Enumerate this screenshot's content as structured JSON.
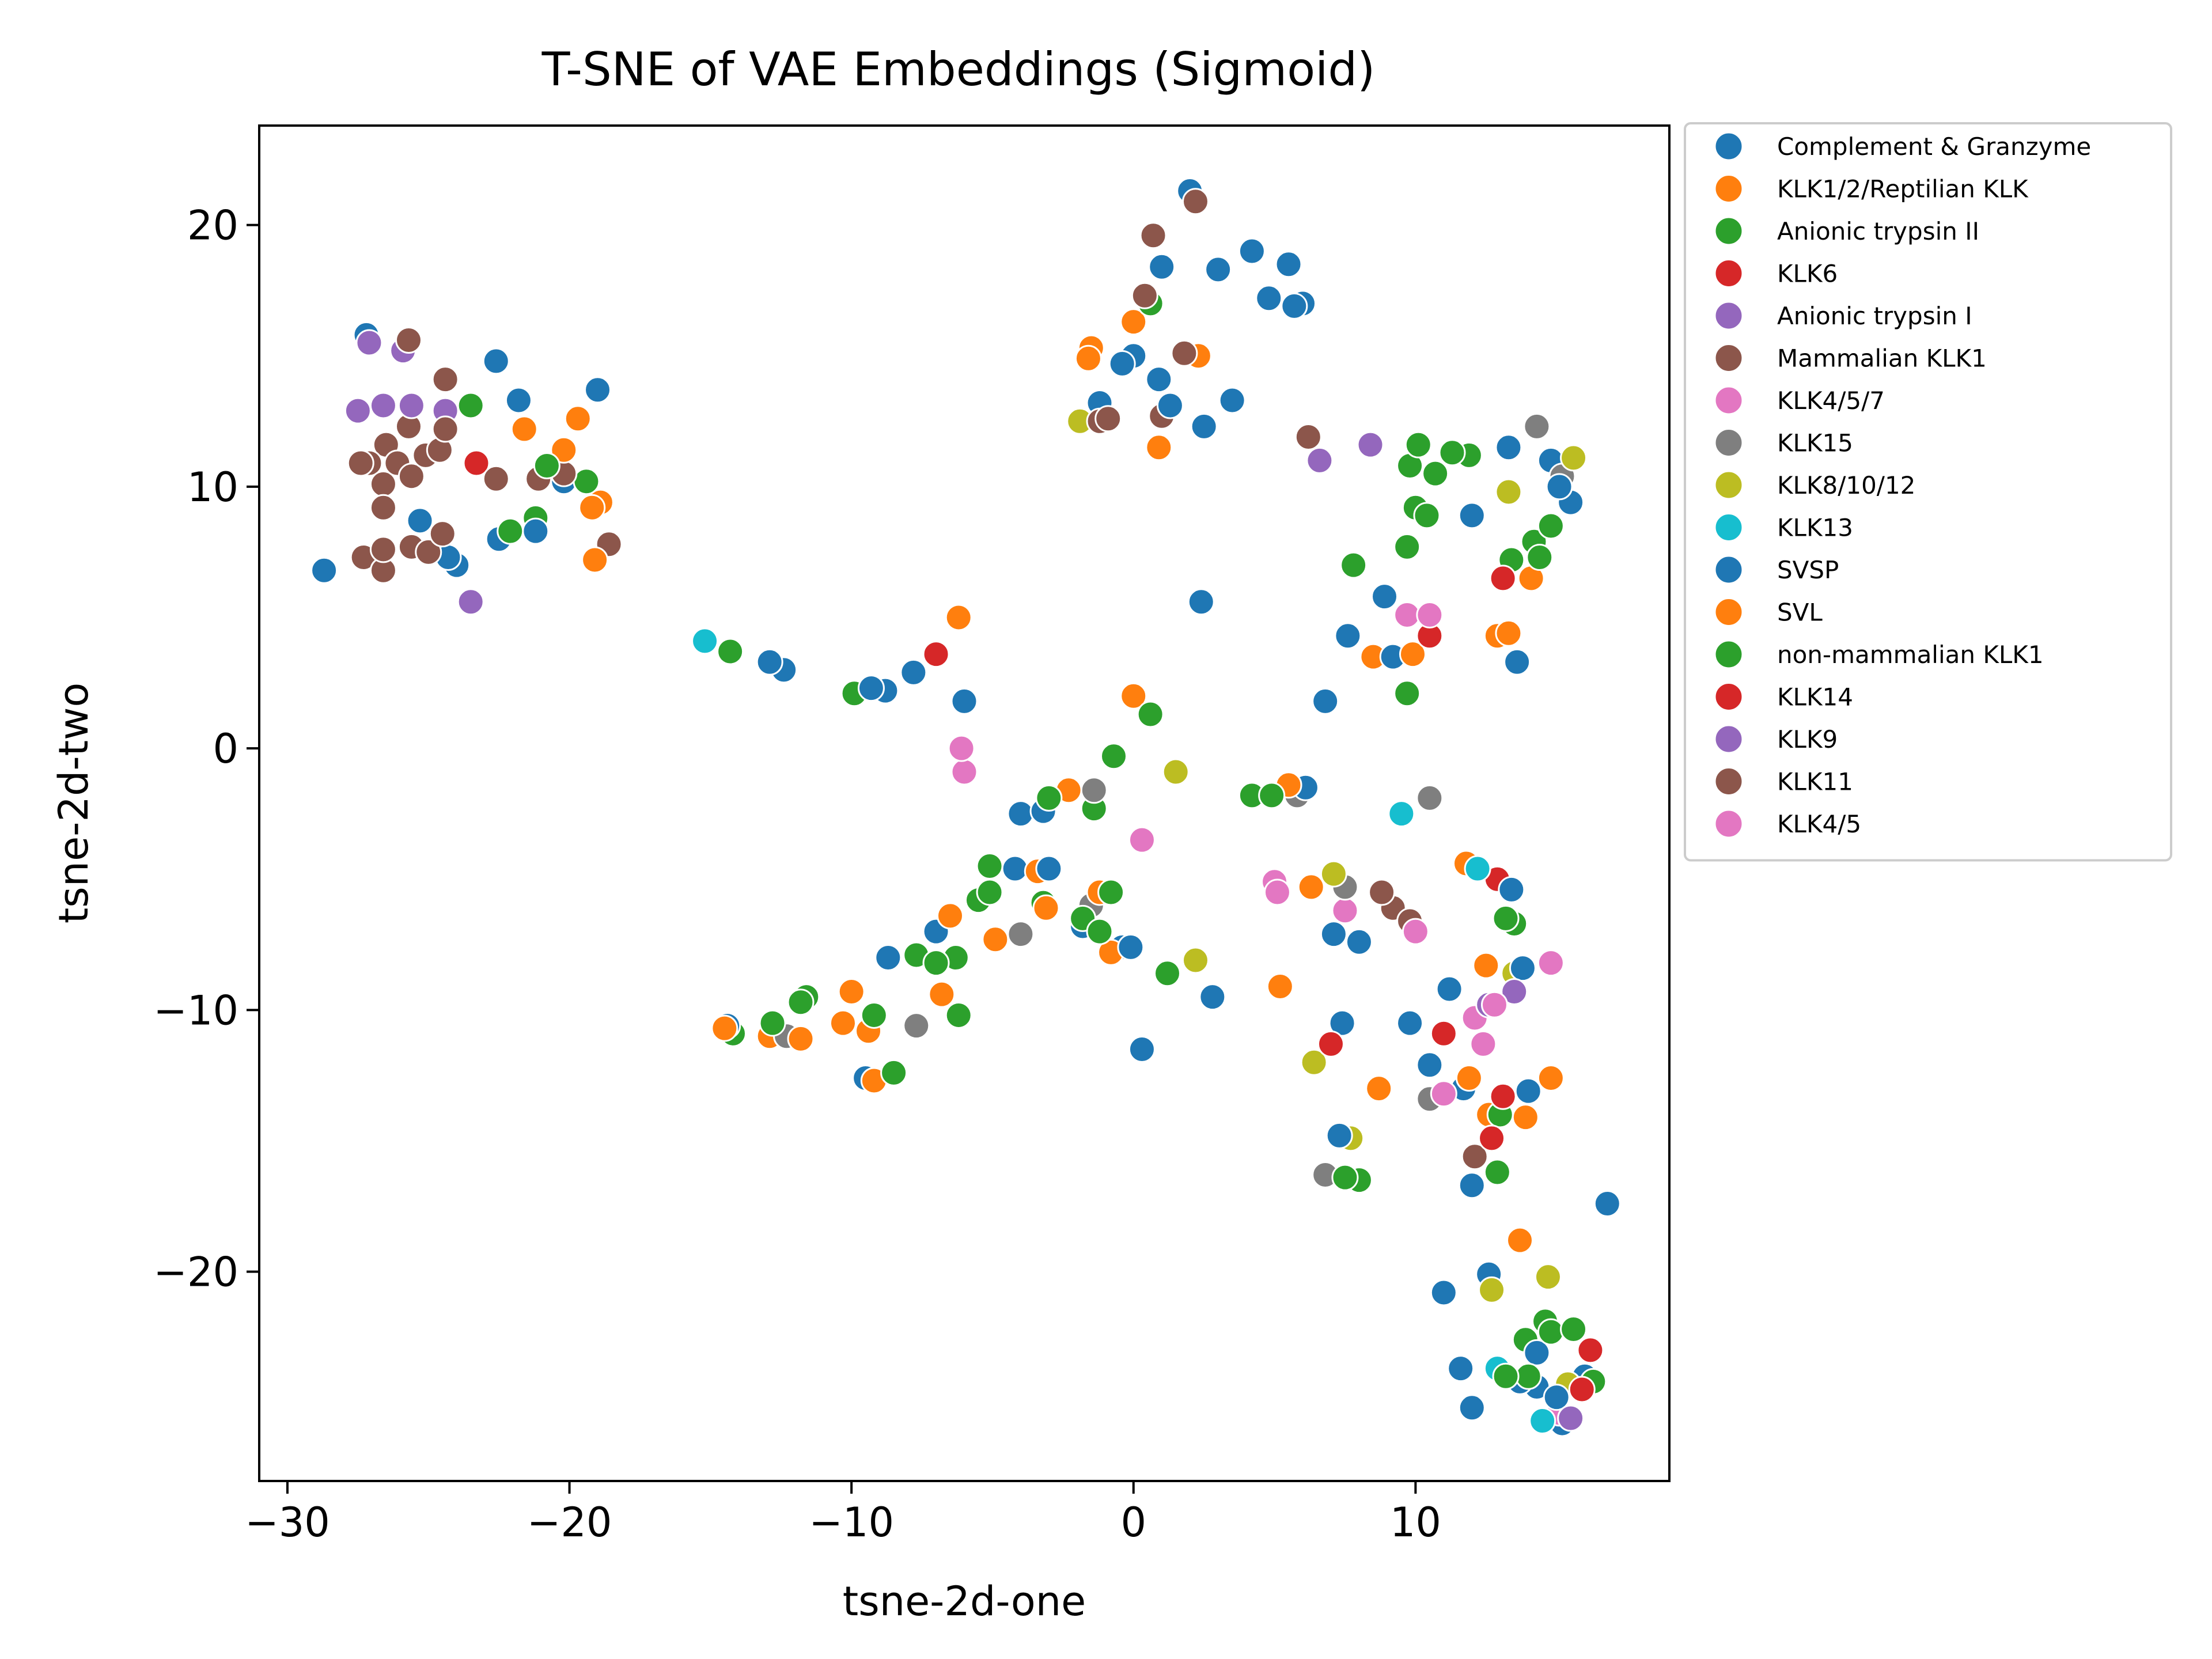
{
  "chart_data": {
    "type": "scatter",
    "title": "T-SNE of VAE Embeddings (Sigmoid)",
    "xlabel": "tsne-2d-one",
    "ylabel": "tsne-2d-two",
    "xlim": [
      -31,
      19
    ],
    "ylim": [
      -28,
      23.8
    ],
    "xticks": [
      -30,
      -20,
      -10,
      0,
      10
    ],
    "yticks": [
      -20,
      -10,
      0,
      10,
      20
    ],
    "xtick_labels": [
      "−30",
      "−20",
      "−10",
      "0",
      "10"
    ],
    "ytick_labels": [
      "−20",
      "−10",
      "0",
      "10",
      "20"
    ],
    "grid": false,
    "legend_position": "outside-top-right",
    "series": [
      {
        "name": "Complement & Granzyme",
        "color": "#1f77b4",
        "points": [
          [
            -28.7,
            6.8
          ],
          [
            -27.2,
            15.8
          ],
          [
            -25.3,
            8.7
          ],
          [
            -24,
            7.0
          ],
          [
            -22.6,
            14.8
          ],
          [
            -21.8,
            13.3
          ],
          [
            -19,
            13.7
          ],
          [
            -22.5,
            8.0
          ],
          [
            -20.2,
            10.2
          ],
          [
            -12.4,
            3.0
          ],
          [
            -8.8,
            2.2
          ],
          [
            -6,
            1.8
          ],
          [
            -4,
            -2.5
          ],
          [
            -4.2,
            -4.6
          ],
          [
            -7,
            -7
          ],
          [
            -9.5,
            -12.6
          ],
          [
            0.3,
            -11.5
          ],
          [
            2.8,
            -9.5
          ],
          [
            -0.4,
            -7.6
          ],
          [
            0,
            15
          ],
          [
            1,
            18.4
          ],
          [
            2,
            21.3
          ],
          [
            4.2,
            19.0
          ],
          [
            5.5,
            18.5
          ],
          [
            3.5,
            13.3
          ],
          [
            6,
            17
          ],
          [
            2.5,
            12.3
          ],
          [
            2.4,
            5.6
          ],
          [
            6.8,
            1.8
          ],
          [
            8.9,
            5.8
          ],
          [
            7.6,
            4.3
          ],
          [
            12,
            8.9
          ],
          [
            13.3,
            11.5
          ],
          [
            14.8,
            11
          ],
          [
            15.5,
            9.4
          ],
          [
            13.6,
            3.3
          ],
          [
            10.5,
            -12.1
          ],
          [
            11.7,
            -13
          ],
          [
            12,
            -16.7
          ],
          [
            16.8,
            -17.4
          ],
          [
            11,
            -20.8
          ],
          [
            12.6,
            -20.1
          ],
          [
            12,
            -25.2
          ],
          [
            14.3,
            -24.4
          ],
          [
            15.2,
            -25.8
          ],
          [
            16,
            -24
          ]
        ]
      },
      {
        "name": "KLK1/2/Reptilian KLK",
        "color": "#ff7f0e",
        "points": [
          [
            -19.7,
            12.6
          ],
          [
            -18.9,
            9.4
          ],
          [
            -21.6,
            12.2
          ],
          [
            -6.2,
            5.0
          ],
          [
            0,
            2.0
          ],
          [
            -1.5,
            15.3
          ],
          [
            0.9,
            11.5
          ],
          [
            2.3,
            15.0
          ],
          [
            -9.2,
            -12.7
          ],
          [
            -12.9,
            -11
          ],
          [
            -6.5,
            -6.4
          ],
          [
            -3.4,
            -4.7
          ],
          [
            -0.8,
            -7.8
          ],
          [
            5.2,
            -9.1
          ],
          [
            6.3,
            -5.3
          ],
          [
            8.7,
            -13
          ],
          [
            11.8,
            -4.4
          ],
          [
            12.5,
            -8.3
          ],
          [
            14.8,
            -12.6
          ],
          [
            13.7,
            -18.8
          ],
          [
            14.1,
            6.5
          ],
          [
            12.9,
            4.3
          ],
          [
            8.5,
            3.5
          ]
        ]
      },
      {
        "name": "Anionic trypsin II",
        "color": "#2ca02c",
        "points": [
          [
            -23.5,
            13.1
          ],
          [
            -21.2,
            8.8
          ],
          [
            -19.4,
            10.2
          ],
          [
            -14.3,
            3.7
          ],
          [
            -9.9,
            2.1
          ],
          [
            -5.1,
            -4.5
          ],
          [
            -3.2,
            -5.9
          ],
          [
            -1.4,
            -2.3
          ],
          [
            -7.7,
            -7.9
          ],
          [
            -6.2,
            -10.2
          ],
          [
            -11.6,
            -9.5
          ],
          [
            -14.2,
            -10.9
          ],
          [
            -8.5,
            -12.4
          ],
          [
            0.6,
            1.3
          ],
          [
            1.2,
            -8.6
          ],
          [
            4.2,
            -1.8
          ],
          [
            8,
            -16.5
          ],
          [
            9.8,
            10.8
          ],
          [
            11.9,
            11.2
          ],
          [
            13.4,
            7.2
          ],
          [
            14.2,
            7.9
          ],
          [
            9.7,
            2.1
          ],
          [
            7.8,
            7.0
          ],
          [
            12.9,
            -16.2
          ],
          [
            13.5,
            -6.7
          ],
          [
            14.6,
            -21.9
          ],
          [
            16.3,
            -24.2
          ],
          [
            13.9,
            -22.6
          ]
        ]
      },
      {
        "name": "KLK6",
        "color": "#d62728",
        "points": [
          [
            -23.3,
            10.9
          ],
          [
            -7,
            3.6
          ],
          [
            12.9,
            -5.0
          ],
          [
            11,
            -10.9
          ]
        ]
      },
      {
        "name": "Anionic trypsin I",
        "color": "#9467bd",
        "points": [
          [
            -27.1,
            15.5
          ],
          [
            -25.9,
            15.2
          ],
          [
            -23.5,
            5.6
          ],
          [
            8.4,
            11.6
          ]
        ]
      },
      {
        "name": "Mammalian KLK1",
        "color": "#8c564b",
        "points": [
          [
            -26.5,
            11.6
          ],
          [
            -24.4,
            14.1
          ],
          [
            -25.7,
            12.3
          ],
          [
            -21.1,
            10.3
          ],
          [
            -20.2,
            10.5
          ],
          [
            -27.3,
            7.3
          ],
          [
            -26.6,
            6.8
          ],
          [
            -25.6,
            7.7
          ],
          [
            -18.6,
            7.8
          ],
          [
            0.7,
            19.6
          ],
          [
            1.8,
            15.1
          ],
          [
            2.2,
            20.9
          ],
          [
            1,
            12.7
          ],
          [
            6.2,
            11.9
          ],
          [
            9.2,
            -6.1
          ],
          [
            12.1,
            -15.6
          ]
        ]
      },
      {
        "name": "KLK4/5/7",
        "color": "#e377c2",
        "points": [
          [
            -6,
            -0.9
          ],
          [
            7.5,
            -6.2
          ],
          [
            9.7,
            5.1
          ],
          [
            12.1,
            -10.3
          ],
          [
            12.4,
            -11.3
          ],
          [
            15.1,
            -25.4
          ]
        ]
      },
      {
        "name": "KLK15",
        "color": "#7f7f7f",
        "points": [
          [
            -12.3,
            -11
          ],
          [
            -7.7,
            -10.6
          ],
          [
            -4,
            -7.1
          ],
          [
            -1.5,
            -6
          ],
          [
            -1.4,
            -1.6
          ],
          [
            5.8,
            -1.8
          ],
          [
            10.5,
            -1.9
          ],
          [
            6.8,
            -16.3
          ],
          [
            7.5,
            -5.3
          ],
          [
            10.5,
            -13.4
          ],
          [
            14.3,
            12.3
          ],
          [
            15.2,
            10.4
          ]
        ]
      },
      {
        "name": "KLK8/10/12",
        "color": "#bcbd22",
        "points": [
          [
            -1.9,
            12.5
          ],
          [
            1.5,
            -0.9
          ],
          [
            2.2,
            -8.1
          ],
          [
            6.4,
            -12
          ],
          [
            7.1,
            -4.8
          ],
          [
            7.7,
            -14.9
          ],
          [
            13.3,
            9.8
          ],
          [
            15.6,
            11.1
          ],
          [
            13.5,
            -8.6
          ],
          [
            12.7,
            -20.7
          ],
          [
            14.7,
            -20.2
          ],
          [
            15.4,
            -24.3
          ]
        ]
      },
      {
        "name": "KLK13",
        "color": "#17becf",
        "points": [
          [
            -15.2,
            4.1
          ],
          [
            9.5,
            -2.5
          ],
          [
            12.2,
            -4.6
          ],
          [
            12.9,
            -23.7
          ],
          [
            14.5,
            -25.7
          ]
        ]
      },
      {
        "name": "SVSP",
        "color": "#1f77b4",
        "points": [
          [
            -24.3,
            7.3
          ],
          [
            -21.2,
            8.3
          ],
          [
            -12.9,
            3.3
          ],
          [
            -9.3,
            2.3
          ],
          [
            -7.8,
            2.9
          ],
          [
            -8.7,
            -8
          ],
          [
            -14.4,
            -10.6
          ],
          [
            -3,
            -4.6
          ],
          [
            -1.8,
            -6.8
          ],
          [
            -3.2,
            -2.4
          ],
          [
            -0.1,
            -7.6
          ],
          [
            -1.2,
            13.2
          ],
          [
            -0.4,
            14.7
          ],
          [
            0.9,
            14.1
          ],
          [
            1.3,
            13.1
          ],
          [
            4.8,
            17.2
          ],
          [
            3,
            18.3
          ],
          [
            5.7,
            16.9
          ],
          [
            6.1,
            -1.5
          ],
          [
            8,
            -7.4
          ],
          [
            7.1,
            -7.1
          ],
          [
            7.4,
            -10.5
          ],
          [
            7.3,
            -14.8
          ],
          [
            9.8,
            -10.5
          ],
          [
            9.2,
            3.5
          ],
          [
            11.2,
            -9.2
          ],
          [
            13.4,
            -5.4
          ],
          [
            13.8,
            -8.4
          ],
          [
            14,
            -13.1
          ],
          [
            15.1,
            10.0
          ],
          [
            11.6,
            -23.7
          ],
          [
            13.7,
            -24.2
          ],
          [
            14.3,
            -23.1
          ],
          [
            15,
            -24.8
          ]
        ]
      },
      {
        "name": "SVL",
        "color": "#ff7f0e",
        "points": [
          [
            -20.2,
            11.4
          ],
          [
            -19.1,
            7.2
          ],
          [
            -19.2,
            9.2
          ],
          [
            -10,
            -9.3
          ],
          [
            -9.4,
            -10.8
          ],
          [
            -10.3,
            -10.5
          ],
          [
            -11.8,
            -11.1
          ],
          [
            -14.5,
            -10.7
          ],
          [
            -6.8,
            -9.4
          ],
          [
            -4.9,
            -7.3
          ],
          [
            -2.3,
            -1.6
          ],
          [
            -1.2,
            -5.5
          ],
          [
            -3.1,
            -6.1
          ],
          [
            0,
            16.3
          ],
          [
            -1.6,
            14.9
          ],
          [
            5.5,
            -1.4
          ],
          [
            9.9,
            3.6
          ],
          [
            12.6,
            -14
          ],
          [
            13.9,
            -14.1
          ],
          [
            11.9,
            -12.6
          ],
          [
            13.3,
            4.4
          ]
        ]
      },
      {
        "name": "non-mammalian KLK1",
        "color": "#2ca02c",
        "points": [
          [
            -22.1,
            8.3
          ],
          [
            -20.8,
            10.8
          ],
          [
            -5.5,
            -5.8
          ],
          [
            -5.1,
            -5.5
          ],
          [
            -1.8,
            -6.5
          ],
          [
            -1.2,
            -7
          ],
          [
            -0.8,
            -5.5
          ],
          [
            -6.3,
            -8
          ],
          [
            -7,
            -8.2
          ],
          [
            -3,
            -1.9
          ],
          [
            -0.7,
            -0.3
          ],
          [
            -9.2,
            -10.2
          ],
          [
            -12.8,
            -10.5
          ],
          [
            -11.8,
            -9.7
          ],
          [
            0.6,
            17.0
          ],
          [
            4.9,
            -1.8
          ],
          [
            7.5,
            -16.4
          ],
          [
            10,
            9.2
          ],
          [
            10.1,
            11.6
          ],
          [
            10.7,
            10.5
          ],
          [
            11.3,
            11.3
          ],
          [
            14.8,
            8.5
          ],
          [
            14.4,
            7.3
          ],
          [
            10.4,
            8.9
          ],
          [
            9.7,
            7.7
          ],
          [
            13,
            -14
          ],
          [
            13.2,
            -6.5
          ],
          [
            14,
            -24
          ],
          [
            14.8,
            -22.3
          ],
          [
            13.2,
            -24
          ],
          [
            15.6,
            -22.2
          ]
        ]
      },
      {
        "name": "KLK14",
        "color": "#d62728",
        "points": [
          [
            7,
            -11.3
          ],
          [
            13.1,
            6.5
          ],
          [
            10.5,
            4.3
          ],
          [
            12.7,
            -14.9
          ],
          [
            13.1,
            -13.3
          ],
          [
            15.9,
            -24.5
          ],
          [
            16.2,
            -23
          ]
        ]
      },
      {
        "name": "KLK9",
        "color": "#9467bd",
        "points": [
          [
            -27.5,
            12.9
          ],
          [
            -26.6,
            13.1
          ],
          [
            -25.6,
            13.1
          ],
          [
            -24.4,
            12.9
          ],
          [
            6.6,
            11.0
          ],
          [
            12.6,
            -9.8
          ],
          [
            13.5,
            -9.3
          ],
          [
            15.5,
            -25.6
          ]
        ]
      },
      {
        "name": "KLK11",
        "color": "#8c564b",
        "points": [
          [
            -27.1,
            10.9
          ],
          [
            -26.6,
            10.1
          ],
          [
            -26.6,
            9.2
          ],
          [
            -26.1,
            10.9
          ],
          [
            -25.6,
            10.4
          ],
          [
            -25.1,
            11.2
          ],
          [
            -24.6,
            11.4
          ],
          [
            -24.4,
            12.2
          ],
          [
            -22.6,
            10.3
          ],
          [
            -26.6,
            7.6
          ],
          [
            -25,
            7.5
          ],
          [
            -24.5,
            8.2
          ],
          [
            -25.7,
            15.6
          ],
          [
            -27.4,
            10.9
          ],
          [
            -1.2,
            12.5
          ],
          [
            0.4,
            17.3
          ],
          [
            -0.9,
            12.6
          ],
          [
            8.8,
            -5.5
          ],
          [
            9.8,
            -6.6
          ]
        ]
      },
      {
        "name": "KLK4/5",
        "color": "#e377c2",
        "points": [
          [
            -6.1,
            0.0
          ],
          [
            0.3,
            -3.5
          ],
          [
            5,
            -5.1
          ],
          [
            5.1,
            -5.5
          ],
          [
            10,
            -7
          ],
          [
            11,
            -13.2
          ],
          [
            12.8,
            -9.8
          ],
          [
            14.8,
            -8.2
          ],
          [
            10.5,
            5.1
          ]
        ]
      }
    ]
  }
}
